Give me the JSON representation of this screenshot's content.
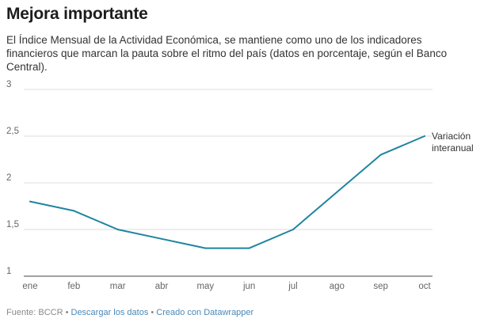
{
  "header": {
    "title": "Mejora importante",
    "description": "El Índice Mensual de la Actividad Económica, se mantiene como uno de los indicadores financieros que marcan la pauta sobre el ritmo del país (datos en porcentaje, según el Banco Central)."
  },
  "chart_data": {
    "type": "line",
    "categories": [
      "ene",
      "feb",
      "mar",
      "abr",
      "may",
      "jun",
      "jul",
      "ago",
      "sep",
      "oct"
    ],
    "series": [
      {
        "name": "Variación interanual",
        "values": [
          1.8,
          1.7,
          1.5,
          1.4,
          1.3,
          1.3,
          1.5,
          1.9,
          2.3,
          2.5
        ],
        "color": "#1f85a0"
      }
    ],
    "y_ticks": [
      1,
      1.5,
      2,
      2.5,
      3
    ],
    "y_tick_labels": [
      "1",
      "1,5",
      "2",
      "2,5",
      "3"
    ],
    "ylim": [
      1,
      3
    ],
    "grid": true,
    "legend": "direct label at line end",
    "title": "Mejora importante",
    "xlabel": "",
    "ylabel": ""
  },
  "footer": {
    "source": "Fuente: BCCR",
    "separator": " • ",
    "download_link": "Descargar los datos",
    "credit_link": "Creado con Datawrapper"
  },
  "colors": {
    "line": "#1f85a0",
    "grid": "#dddddd",
    "baseline": "#444444",
    "link": "#4a88b8"
  }
}
